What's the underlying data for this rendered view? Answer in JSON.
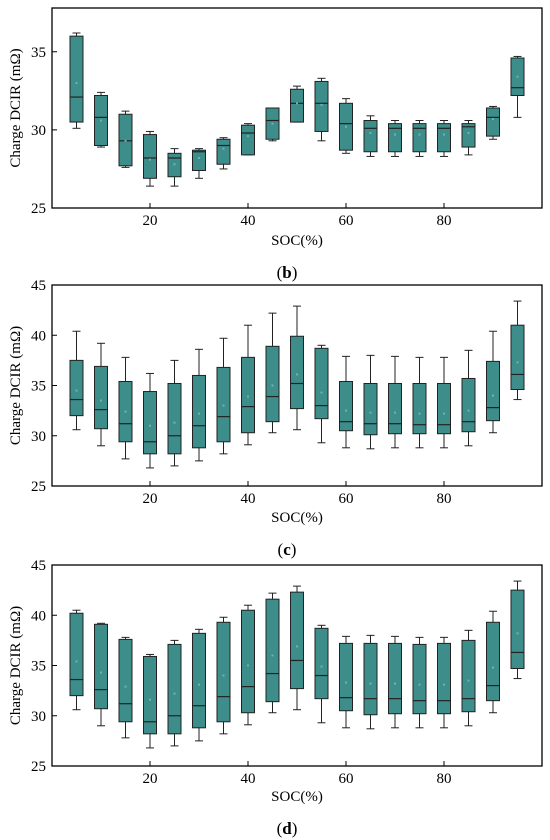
{
  "chart_data": [
    {
      "type": "box",
      "panel_label_open": "(",
      "panel_label_letter": "b",
      "panel_label_close": ")",
      "xlabel": "SOC(%)",
      "ylabel": "Charge DCIR (mΩ)",
      "xlim": [
        0,
        100
      ],
      "ylim": [
        25,
        37.8
      ],
      "xticks": [
        20,
        40,
        60,
        80
      ],
      "yticks": [
        25,
        30,
        35
      ],
      "box_color": "#3d8e8a",
      "boxes": [
        {
          "soc": 5,
          "min": 30.1,
          "q1": 30.5,
          "median": 32.1,
          "q3": 36.0,
          "max": 36.2,
          "mean": 33.0
        },
        {
          "soc": 10,
          "min": 28.9,
          "q1": 29.0,
          "median": 30.8,
          "q3": 32.2,
          "max": 32.4,
          "mean": 30.6
        },
        {
          "soc": 15,
          "min": 27.6,
          "q1": 27.7,
          "median": 29.3,
          "q3": 31.0,
          "max": 31.2,
          "mean": 29.3
        },
        {
          "soc": 20,
          "min": 26.4,
          "q1": 26.9,
          "median": 28.2,
          "q3": 29.7,
          "max": 29.9,
          "mean": 28.1
        },
        {
          "soc": 25,
          "min": 26.4,
          "q1": 27.0,
          "median": 28.2,
          "q3": 28.5,
          "max": 28.8,
          "mean": 27.8
        },
        {
          "soc": 30,
          "min": 26.9,
          "q1": 27.4,
          "median": 28.6,
          "q3": 28.7,
          "max": 28.8,
          "mean": 28.2
        },
        {
          "soc": 35,
          "min": 27.5,
          "q1": 27.8,
          "median": 29.0,
          "q3": 29.4,
          "max": 29.5,
          "mean": 28.8
        },
        {
          "soc": 40,
          "min": 28.4,
          "q1": 28.4,
          "median": 29.8,
          "q3": 30.3,
          "max": 30.4,
          "mean": 29.6
        },
        {
          "soc": 45,
          "min": 29.3,
          "q1": 29.4,
          "median": 30.6,
          "q3": 31.4,
          "max": 31.4,
          "mean": 30.4
        },
        {
          "soc": 50,
          "min": 30.5,
          "q1": 30.5,
          "median": 31.7,
          "q3": 32.6,
          "max": 32.8,
          "mean": 31.7
        },
        {
          "soc": 55,
          "min": 29.3,
          "q1": 29.9,
          "median": 31.7,
          "q3": 33.1,
          "max": 33.3,
          "mean": 31.6
        },
        {
          "soc": 60,
          "min": 28.5,
          "q1": 28.7,
          "median": 30.4,
          "q3": 31.7,
          "max": 32.0,
          "mean": 30.2
        },
        {
          "soc": 65,
          "min": 28.3,
          "q1": 28.6,
          "median": 30.1,
          "q3": 30.6,
          "max": 30.9,
          "mean": 29.8
        },
        {
          "soc": 70,
          "min": 28.3,
          "q1": 28.6,
          "median": 30.1,
          "q3": 30.4,
          "max": 30.6,
          "mean": 29.7
        },
        {
          "soc": 75,
          "min": 28.3,
          "q1": 28.6,
          "median": 30.1,
          "q3": 30.4,
          "max": 30.6,
          "mean": 29.7
        },
        {
          "soc": 80,
          "min": 28.3,
          "q1": 28.6,
          "median": 30.1,
          "q3": 30.4,
          "max": 30.6,
          "mean": 29.7
        },
        {
          "soc": 85,
          "min": 28.4,
          "q1": 28.9,
          "median": 30.2,
          "q3": 30.4,
          "max": 30.6,
          "mean": 29.8
        },
        {
          "soc": 90,
          "min": 29.4,
          "q1": 29.6,
          "median": 30.8,
          "q3": 31.4,
          "max": 31.5,
          "mean": 30.7
        },
        {
          "soc": 95,
          "min": 30.8,
          "q1": 32.2,
          "median": 32.7,
          "q3": 34.6,
          "max": 34.7,
          "mean": 33.4
        }
      ]
    },
    {
      "type": "box",
      "panel_label_open": "(",
      "panel_label_letter": "c",
      "panel_label_close": ")",
      "xlabel": "SOC(%)",
      "ylabel": "Charge DCIR (mΩ)",
      "xlim": [
        0,
        100
      ],
      "ylim": [
        25,
        45
      ],
      "xticks": [
        20,
        40,
        60,
        80
      ],
      "yticks": [
        25,
        30,
        35,
        40,
        45
      ],
      "box_color": "#3d8e8a",
      "boxes": [
        {
          "soc": 5,
          "min": 30.6,
          "q1": 32.0,
          "median": 33.6,
          "q3": 37.5,
          "max": 40.4,
          "mean": 34.5
        },
        {
          "soc": 10,
          "min": 29.0,
          "q1": 30.7,
          "median": 32.6,
          "q3": 36.9,
          "max": 39.2,
          "mean": 33.5
        },
        {
          "soc": 15,
          "min": 27.7,
          "q1": 29.4,
          "median": 31.2,
          "q3": 35.4,
          "max": 37.8,
          "mean": 32.4
        },
        {
          "soc": 20,
          "min": 26.8,
          "q1": 28.2,
          "median": 29.4,
          "q3": 34.4,
          "max": 36.2,
          "mean": 31.0
        },
        {
          "soc": 25,
          "min": 27.0,
          "q1": 28.2,
          "median": 30.0,
          "q3": 35.2,
          "max": 37.5,
          "mean": 31.3
        },
        {
          "soc": 30,
          "min": 27.5,
          "q1": 28.8,
          "median": 31.0,
          "q3": 36.0,
          "max": 38.6,
          "mean": 32.2
        },
        {
          "soc": 35,
          "min": 28.2,
          "q1": 29.4,
          "median": 31.9,
          "q3": 36.8,
          "max": 39.7,
          "mean": 33.0
        },
        {
          "soc": 40,
          "min": 29.1,
          "q1": 30.3,
          "median": 32.9,
          "q3": 37.8,
          "max": 41.0,
          "mean": 33.9
        },
        {
          "soc": 45,
          "min": 30.3,
          "q1": 31.4,
          "median": 33.9,
          "q3": 38.9,
          "max": 42.2,
          "mean": 35.0
        },
        {
          "soc": 50,
          "min": 30.6,
          "q1": 32.7,
          "median": 35.2,
          "q3": 39.9,
          "max": 42.9,
          "mean": 36.1
        },
        {
          "soc": 55,
          "min": 29.3,
          "q1": 31.7,
          "median": 33.0,
          "q3": 38.7,
          "max": 39.0,
          "mean": 34.3
        },
        {
          "soc": 60,
          "min": 28.8,
          "q1": 30.5,
          "median": 31.4,
          "q3": 35.4,
          "max": 37.9,
          "mean": 32.5
        },
        {
          "soc": 65,
          "min": 28.7,
          "q1": 30.1,
          "median": 31.2,
          "q3": 35.2,
          "max": 38.0,
          "mean": 32.3
        },
        {
          "soc": 70,
          "min": 28.8,
          "q1": 30.2,
          "median": 31.2,
          "q3": 35.2,
          "max": 37.9,
          "mean": 32.3
        },
        {
          "soc": 75,
          "min": 28.8,
          "q1": 30.2,
          "median": 31.1,
          "q3": 35.2,
          "max": 37.8,
          "mean": 32.2
        },
        {
          "soc": 80,
          "min": 28.8,
          "q1": 30.2,
          "median": 31.1,
          "q3": 35.2,
          "max": 37.8,
          "mean": 32.2
        },
        {
          "soc": 85,
          "min": 29.0,
          "q1": 30.4,
          "median": 31.4,
          "q3": 35.7,
          "max": 38.5,
          "mean": 32.5
        },
        {
          "soc": 90,
          "min": 30.3,
          "q1": 31.5,
          "median": 32.8,
          "q3": 37.4,
          "max": 40.4,
          "mean": 34.0
        },
        {
          "soc": 95,
          "min": 33.6,
          "q1": 34.6,
          "median": 36.1,
          "q3": 41.0,
          "max": 43.4,
          "mean": 37.3
        }
      ]
    },
    {
      "type": "box",
      "panel_label_open": "(",
      "panel_label_letter": "d",
      "panel_label_close": ")",
      "xlabel": "SOC(%)",
      "ylabel": "Charge DCIR (mΩ)",
      "xlim": [
        0,
        100
      ],
      "ylim": [
        25,
        45
      ],
      "xticks": [
        20,
        40,
        60,
        80
      ],
      "yticks": [
        25,
        30,
        35,
        40,
        45
      ],
      "box_color": "#3d8e8a",
      "boxes": [
        {
          "soc": 5,
          "min": 30.6,
          "q1": 32.0,
          "median": 33.6,
          "q3": 40.2,
          "max": 40.5,
          "mean": 35.4
        },
        {
          "soc": 10,
          "min": 29.0,
          "q1": 30.7,
          "median": 32.6,
          "q3": 39.1,
          "max": 39.2,
          "mean": 34.3
        },
        {
          "soc": 15,
          "min": 27.8,
          "q1": 29.4,
          "median": 31.2,
          "q3": 37.6,
          "max": 37.8,
          "mean": 32.9
        },
        {
          "soc": 20,
          "min": 26.8,
          "q1": 28.2,
          "median": 29.4,
          "q3": 35.9,
          "max": 36.1,
          "mean": 31.6
        },
        {
          "soc": 25,
          "min": 27.0,
          "q1": 28.2,
          "median": 30.0,
          "q3": 37.1,
          "max": 37.5,
          "mean": 32.2
        },
        {
          "soc": 30,
          "min": 27.5,
          "q1": 28.8,
          "median": 31.0,
          "q3": 38.2,
          "max": 38.6,
          "mean": 33.1
        },
        {
          "soc": 35,
          "min": 28.2,
          "q1": 29.4,
          "median": 31.9,
          "q3": 39.3,
          "max": 39.8,
          "mean": 34.0
        },
        {
          "soc": 40,
          "min": 29.1,
          "q1": 30.3,
          "median": 32.9,
          "q3": 40.5,
          "max": 41.0,
          "mean": 35.0
        },
        {
          "soc": 45,
          "min": 30.3,
          "q1": 31.4,
          "median": 34.2,
          "q3": 41.6,
          "max": 42.2,
          "mean": 36.0
        },
        {
          "soc": 50,
          "min": 30.6,
          "q1": 32.7,
          "median": 35.5,
          "q3": 42.3,
          "max": 42.9,
          "mean": 36.9
        },
        {
          "soc": 55,
          "min": 29.3,
          "q1": 31.7,
          "median": 34.0,
          "q3": 38.7,
          "max": 39.0,
          "mean": 34.9
        },
        {
          "soc": 60,
          "min": 28.8,
          "q1": 30.5,
          "median": 31.8,
          "q3": 37.2,
          "max": 37.9,
          "mean": 33.3
        },
        {
          "soc": 65,
          "min": 28.7,
          "q1": 30.1,
          "median": 31.7,
          "q3": 37.2,
          "max": 38.0,
          "mean": 33.2
        },
        {
          "soc": 70,
          "min": 28.8,
          "q1": 30.2,
          "median": 31.7,
          "q3": 37.2,
          "max": 37.9,
          "mean": 33.2
        },
        {
          "soc": 75,
          "min": 28.8,
          "q1": 30.2,
          "median": 31.5,
          "q3": 37.1,
          "max": 37.8,
          "mean": 33.1
        },
        {
          "soc": 80,
          "min": 28.8,
          "q1": 30.2,
          "median": 31.5,
          "q3": 37.2,
          "max": 37.8,
          "mean": 33.1
        },
        {
          "soc": 85,
          "min": 29.0,
          "q1": 30.4,
          "median": 31.7,
          "q3": 37.5,
          "max": 38.5,
          "mean": 33.5
        },
        {
          "soc": 90,
          "min": 30.3,
          "q1": 31.5,
          "median": 33.0,
          "q3": 39.3,
          "max": 40.4,
          "mean": 34.8
        },
        {
          "soc": 95,
          "min": 33.7,
          "q1": 34.7,
          "median": 36.3,
          "q3": 42.5,
          "max": 43.4,
          "mean": 38.2
        }
      ]
    }
  ]
}
